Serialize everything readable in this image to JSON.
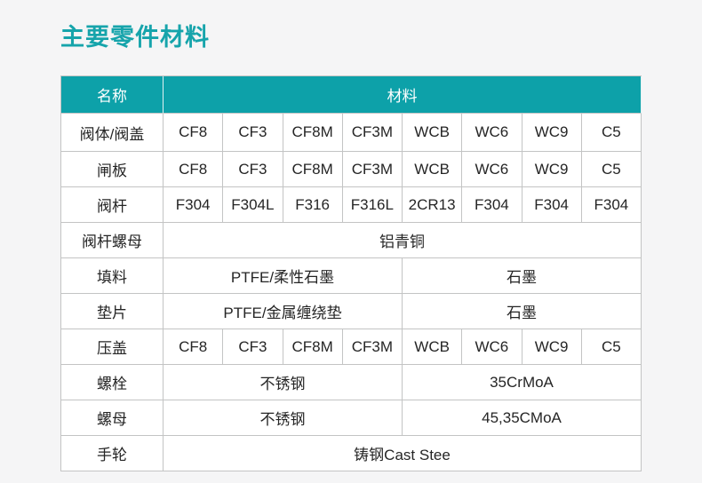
{
  "title": "主要零件材料",
  "colors": {
    "accent": "#16a4ab",
    "table_header_bg": "#0da1a9",
    "table_header_text": "#ffffff",
    "table_border": "#c3c4c4",
    "page_bg": "#f5f5f6"
  },
  "table": {
    "header": {
      "name_label": "名称",
      "material_label": "材料"
    },
    "rows": [
      {
        "label": "阀体/阀盖",
        "type": "cells",
        "values": [
          "CF8",
          "CF3",
          "CF8M",
          "CF3M",
          "WCB",
          "WC6",
          "WC9",
          "C5"
        ]
      },
      {
        "label": "闸板",
        "type": "cells",
        "values": [
          "CF8",
          "CF3",
          "CF8M",
          "CF3M",
          "WCB",
          "WC6",
          "WC9",
          "C5"
        ]
      },
      {
        "label": "阀杆",
        "type": "cells",
        "values": [
          "F304",
          "F304L",
          "F316",
          "F316L",
          "2CR13",
          "F304",
          "F304",
          "F304"
        ]
      },
      {
        "label": "阀杆螺母",
        "type": "full",
        "values": [
          "铝青铜"
        ]
      },
      {
        "label": "填料",
        "type": "half",
        "values": [
          "PTFE/柔性石墨",
          "石墨"
        ]
      },
      {
        "label": "垫片",
        "type": "half",
        "values": [
          "PTFE/金属缠绕垫",
          "石墨"
        ]
      },
      {
        "label": "压盖",
        "type": "cells",
        "values": [
          "CF8",
          "CF3",
          "CF8M",
          "CF3M",
          "WCB",
          "WC6",
          "WC9",
          "C5"
        ]
      },
      {
        "label": "螺栓",
        "type": "half",
        "values": [
          "不锈钢",
          "35CrMoA"
        ]
      },
      {
        "label": "螺母",
        "type": "half",
        "values": [
          "不锈钢",
          "45,35CMoA"
        ]
      },
      {
        "label": "手轮",
        "type": "full",
        "values": [
          "铸钢Cast Stee"
        ]
      }
    ]
  }
}
